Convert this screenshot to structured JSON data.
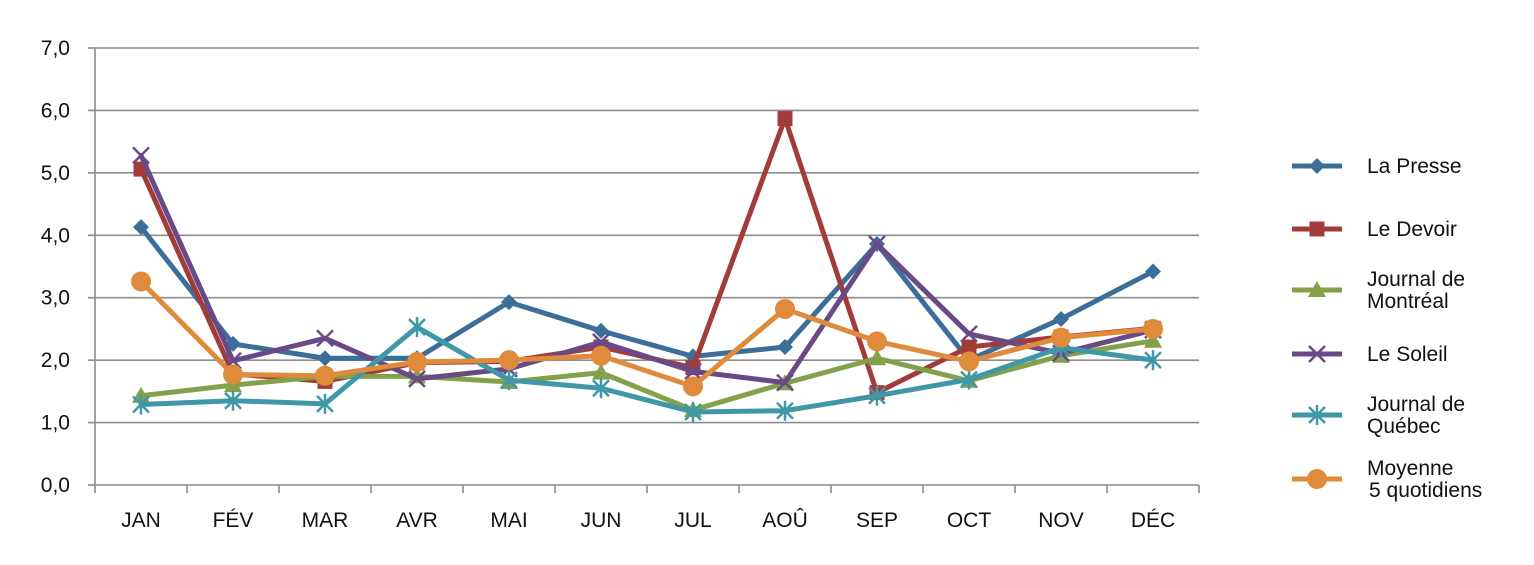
{
  "chart_data": {
    "type": "line",
    "title": "",
    "xlabel": "",
    "ylabel": "",
    "categories": [
      "JAN",
      "FÉV",
      "MAR",
      "AVR",
      "MAI",
      "JUN",
      "JUL",
      "AOÛ",
      "SEP",
      "OCT",
      "NOV",
      "DÉC"
    ],
    "ylim": [
      0,
      7
    ],
    "yticks": [
      "0,0",
      "1,0",
      "2,0",
      "3,0",
      "4,0",
      "5,0",
      "6,0",
      "7,0"
    ],
    "grid": true,
    "legend_position": "right",
    "series": [
      {
        "name": "La Presse",
        "color": "#3C6E9A",
        "marker": "diamond",
        "values": [
          4.13,
          2.26,
          2.03,
          2.03,
          2.93,
          2.47,
          2.06,
          2.21,
          3.86,
          2.0,
          2.66,
          3.42
        ]
      },
      {
        "name": "Le Devoir",
        "color": "#A23C3A",
        "marker": "square",
        "values": [
          5.06,
          1.78,
          1.66,
          1.96,
          1.98,
          2.21,
          1.88,
          5.87,
          1.48,
          2.21,
          2.37,
          2.51
        ]
      },
      {
        "name": "Journal de\nMontréal",
        "color": "#82A14A",
        "marker": "triangle",
        "values": [
          1.43,
          1.6,
          1.74,
          1.74,
          1.65,
          1.8,
          1.2,
          1.63,
          2.03,
          1.67,
          2.07,
          2.31
        ]
      },
      {
        "name": "Le Soleil",
        "color": "#6A4A86",
        "marker": "x",
        "values": [
          5.28,
          1.99,
          2.35,
          1.7,
          1.86,
          2.29,
          1.82,
          1.64,
          3.86,
          2.42,
          2.11,
          2.48
        ]
      },
      {
        "name": "Journal de\nQuébec",
        "color": "#3F97A8",
        "marker": "star",
        "values": [
          1.29,
          1.35,
          1.3,
          2.53,
          1.68,
          1.55,
          1.17,
          1.19,
          1.43,
          1.69,
          2.2,
          2.0
        ]
      },
      {
        "name": "Moyenne\n5 quotidiens",
        "color": "#E08A3C",
        "marker": "circle",
        "values": [
          3.26,
          1.77,
          1.75,
          1.97,
          2.0,
          2.07,
          1.58,
          2.82,
          2.3,
          1.98,
          2.36,
          2.5
        ]
      }
    ]
  }
}
